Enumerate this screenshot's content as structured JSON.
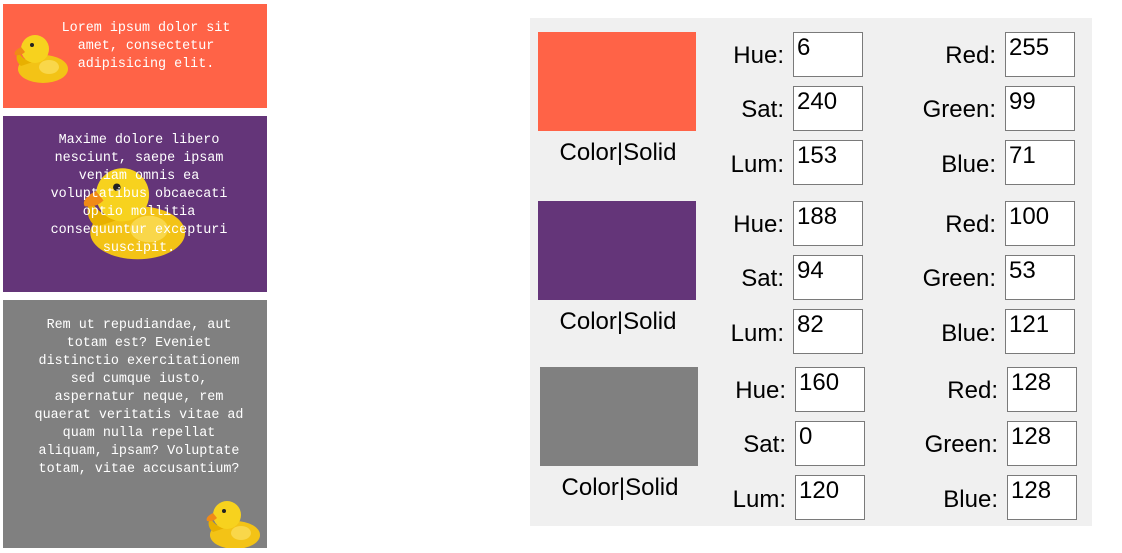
{
  "cards": [
    {
      "color": "#ff6347",
      "text": "Lorem ipsum dolor sit amet, consectetur adipisicing elit."
    },
    {
      "color": "#643579",
      "text": "Maxime dolore libero nesciunt, saepe ipsam veniam omnis ea voluptatibus obcaecati optio mollitia consequuntur excepturi suscipit."
    },
    {
      "color": "#808080",
      "text": "Rem ut repudiandae, aut totam est? Eveniet distinctio exercitationem sed cumque iusto, aspernatur neque, rem quaerat veritatis vitae ad quam nulla repellat aliquam, ipsam? Voluptate totam, vitae accusantium?"
    }
  ],
  "icons": {
    "duck": "rubber-duck-icon"
  },
  "labels": {
    "swatch": "Color|Solid",
    "hue": "Hue:",
    "sat": "Sat:",
    "lum": "Lum:",
    "red": "Red:",
    "green": "Green:",
    "blue": "Blue:"
  },
  "colors": [
    {
      "swatch": "#ff6347",
      "hue": "6",
      "sat": "240",
      "lum": "153",
      "red": "255",
      "green": "99",
      "blue": "71"
    },
    {
      "swatch": "#643579",
      "hue": "188",
      "sat": "94",
      "lum": "82",
      "red": "100",
      "green": "53",
      "blue": "121"
    },
    {
      "swatch": "#808080",
      "hue": "160",
      "sat": "0",
      "lum": "120",
      "red": "128",
      "green": "128",
      "blue": "128"
    }
  ]
}
